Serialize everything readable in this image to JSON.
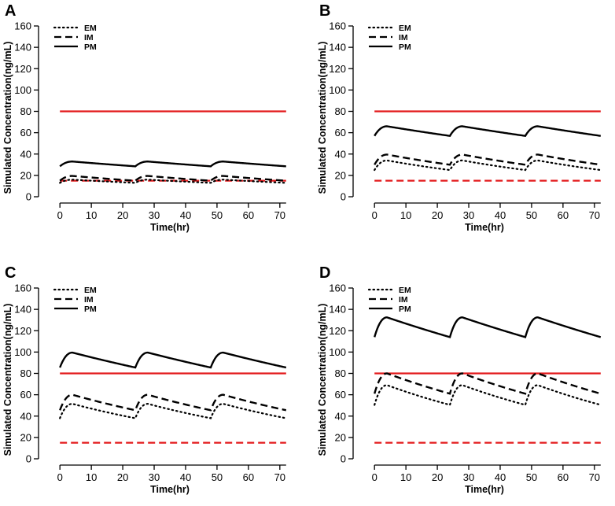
{
  "chart_data": [
    {
      "panel": "A",
      "type": "line",
      "xlabel": "Time(hr)",
      "ylabel": "Simulated Concentration(ng/mL)",
      "xlim": [
        0,
        72
      ],
      "ylim": [
        0,
        160
      ],
      "xticks": [
        0,
        10,
        20,
        30,
        40,
        50,
        60,
        70
      ],
      "yticks": [
        0,
        20,
        40,
        60,
        80,
        100,
        120,
        140,
        160
      ],
      "legend": [
        "EM",
        "IM",
        "PM"
      ],
      "legend_position": "top-left",
      "series": [
        {
          "name": "EM",
          "style": "dotted",
          "color": "#000000",
          "trough": 13,
          "peak": 16
        },
        {
          "name": "IM",
          "style": "dashed",
          "color": "#000000",
          "trough": 15,
          "peak": 19.5
        },
        {
          "name": "PM",
          "style": "solid",
          "color": "#000000",
          "trough": 28.5,
          "peak": 33
        }
      ],
      "thresholds": [
        {
          "value": 80,
          "style": "solid",
          "color": "#e31a1c"
        },
        {
          "value": 15,
          "style": "dashed",
          "color": "#e31a1c"
        }
      ],
      "dosing_interval": 24
    },
    {
      "panel": "B",
      "type": "line",
      "xlabel": "Time(hr)",
      "ylabel": "Simulated Concentration(ng/mL)",
      "xlim": [
        0,
        72
      ],
      "ylim": [
        0,
        160
      ],
      "xticks": [
        0,
        10,
        20,
        30,
        40,
        50,
        60,
        70
      ],
      "yticks": [
        0,
        20,
        40,
        60,
        80,
        100,
        120,
        140,
        160
      ],
      "legend": [
        "EM",
        "IM",
        "PM"
      ],
      "legend_position": "top-left",
      "series": [
        {
          "name": "EM",
          "style": "dotted",
          "color": "#000000",
          "trough": 25,
          "peak": 34
        },
        {
          "name": "IM",
          "style": "dashed",
          "color": "#000000",
          "trough": 30,
          "peak": 39.5
        },
        {
          "name": "PM",
          "style": "solid",
          "color": "#000000",
          "trough": 57,
          "peak": 66
        }
      ],
      "thresholds": [
        {
          "value": 80,
          "style": "solid",
          "color": "#e31a1c"
        },
        {
          "value": 15,
          "style": "dashed",
          "color": "#e31a1c"
        }
      ],
      "dosing_interval": 24
    },
    {
      "panel": "C",
      "type": "line",
      "xlabel": "Time(hr)",
      "ylabel": "Simulated Concentration(ng/mL)",
      "xlim": [
        0,
        72
      ],
      "ylim": [
        0,
        160
      ],
      "xticks": [
        0,
        10,
        20,
        30,
        40,
        50,
        60,
        70
      ],
      "yticks": [
        0,
        20,
        40,
        60,
        80,
        100,
        120,
        140,
        160
      ],
      "legend": [
        "EM",
        "IM",
        "PM"
      ],
      "legend_position": "top-left",
      "series": [
        {
          "name": "EM",
          "style": "dotted",
          "color": "#000000",
          "trough": 38,
          "peak": 51.5
        },
        {
          "name": "IM",
          "style": "dashed",
          "color": "#000000",
          "trough": 45.5,
          "peak": 60
        },
        {
          "name": "PM",
          "style": "solid",
          "color": "#000000",
          "trough": 85.5,
          "peak": 99.5
        }
      ],
      "thresholds": [
        {
          "value": 80,
          "style": "solid",
          "color": "#e31a1c"
        },
        {
          "value": 15,
          "style": "dashed",
          "color": "#e31a1c"
        }
      ],
      "dosing_interval": 24
    },
    {
      "panel": "D",
      "type": "line",
      "xlabel": "Time(hr)",
      "ylabel": "Simulated Concentration(ng/mL)",
      "xlim": [
        0,
        72
      ],
      "ylim": [
        0,
        160
      ],
      "xticks": [
        0,
        10,
        20,
        30,
        40,
        50,
        60,
        70
      ],
      "yticks": [
        0,
        20,
        40,
        60,
        80,
        100,
        120,
        140,
        160
      ],
      "legend": [
        "EM",
        "IM",
        "PM"
      ],
      "legend_position": "top-left",
      "series": [
        {
          "name": "EM",
          "style": "dotted",
          "color": "#000000",
          "trough": 50.5,
          "peak": 69
        },
        {
          "name": "IM",
          "style": "dashed",
          "color": "#000000",
          "trough": 61,
          "peak": 80
        },
        {
          "name": "PM",
          "style": "solid",
          "color": "#000000",
          "trough": 114,
          "peak": 132.5
        }
      ],
      "thresholds": [
        {
          "value": 80,
          "style": "solid",
          "color": "#e31a1c"
        },
        {
          "value": 15,
          "style": "dashed",
          "color": "#e31a1c"
        }
      ],
      "dosing_interval": 24
    }
  ]
}
